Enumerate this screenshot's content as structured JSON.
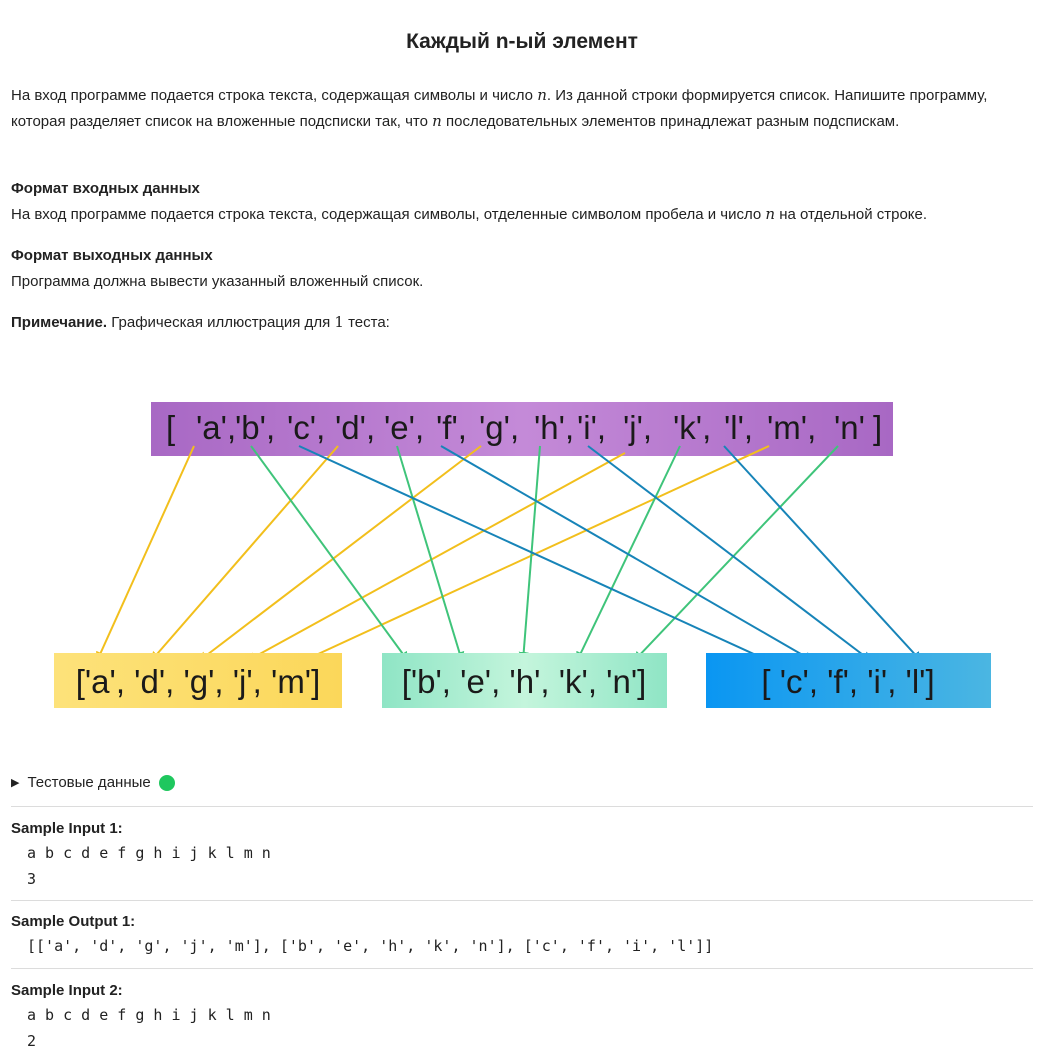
{
  "title": "Каждый n-ый элемент",
  "description": {
    "part1": "На вход программе подается строка текста, содержащая символы и число ",
    "var": "n",
    "part2": ". Из данной строки формируется список. Напишите программу, которая разделяет список на вложенные подсписки так, что ",
    "var2": "n",
    "part3": " последовательных элементов принадлежат разным подспискам."
  },
  "input_format": {
    "heading": "Формат входных данных",
    "text1": "На вход программе подается строка текста, содержащая символы, отделенные символом пробела и число ",
    "var": "n",
    "text2": " на отдельной строке."
  },
  "output_format": {
    "heading": "Формат выходных данных",
    "text": "Программа должна вывести указанный вложенный список."
  },
  "note": {
    "label": "Примечание.",
    "text1": " Графическая иллюстрация для ",
    "num": "1",
    "text2": " теста:"
  },
  "illustration": {
    "source_open": "[",
    "source_close": "]",
    "source_items": [
      "'a',",
      "'b',",
      "'c',",
      "'d',",
      "'e',",
      "'f',",
      "'g',",
      "'h',",
      "'i',",
      "'j',",
      "'k',",
      "'l',",
      "'m',",
      "'n'"
    ],
    "groups": [
      {
        "text": "['a', 'd', 'g', 'j', 'm']",
        "color": "#fbd75a"
      },
      {
        "text": "['b', 'e', 'h', 'k', 'n']",
        "color": "#a8ecd0"
      },
      {
        "text": "[ 'c', 'f', 'i', 'l']",
        "color": "#1aa2ee"
      }
    ],
    "colors": {
      "source_bar": "#b57fcf",
      "arrow_yellow": "#f2bf1c",
      "arrow_green": "#3fc47a",
      "arrow_blue": "#1784b8"
    }
  },
  "tests_toggle": {
    "label": "Тестовые данные",
    "status_color": "#1fc75e"
  },
  "samples": [
    {
      "title": "Sample Input 1:",
      "lines": [
        "a b c d e f g h i j k l m n",
        "3"
      ]
    },
    {
      "title": "Sample Output 1:",
      "lines": [
        "[['a', 'd', 'g', 'j', 'm'], ['b', 'e', 'h', 'k', 'n'], ['c', 'f', 'i', 'l']]"
      ]
    },
    {
      "title": "Sample Input 2:",
      "lines": [
        "a b c d e f g h i j k l m n",
        "2"
      ]
    }
  ]
}
